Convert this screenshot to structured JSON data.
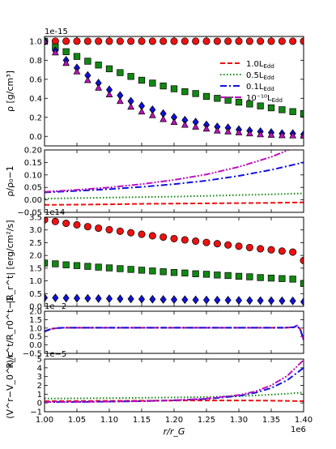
{
  "chart_data": [
    {
      "type": "scatter",
      "panel": "density",
      "ylabel": "ρ [g/cm³]",
      "offset_label": "1e-15",
      "xlim": [
        1.0,
        1400000.0
      ],
      "ylim": [
        -0.1,
        1.05
      ],
      "yticks": [
        "0.0",
        "0.2",
        "0.4",
        "0.6",
        "0.8",
        "1.0"
      ],
      "grid": false,
      "legend_position": "top-right",
      "legend": [
        {
          "label_main": "1.0L",
          "label_sub": "Edd",
          "color": "#ee1111",
          "style": "dashed"
        },
        {
          "label_main": "0.5L",
          "label_sub": "Edd",
          "color": "#118811",
          "style": "dotted"
        },
        {
          "label_main": "0.1L",
          "label_sub": "Edd",
          "color": "#1111dd",
          "style": "dashdot"
        },
        {
          "label_main": "10⁻¹⁰L",
          "label_sub": "Edd",
          "color": "#bb11bb",
          "style": "dashdotdot"
        }
      ],
      "x": [
        1.0,
        1.0167,
        1.0333,
        1.05,
        1.0667,
        1.0833,
        1.1,
        1.1167,
        1.1333,
        1.15,
        1.1667,
        1.1833,
        1.2,
        1.2167,
        1.2333,
        1.25,
        1.2667,
        1.2833,
        1.3,
        1.3167,
        1.3333,
        1.35,
        1.3667,
        1.3833,
        1.4
      ],
      "series": [
        {
          "name": "1.0L_Edd",
          "marker": "circle",
          "color": "#ee1111",
          "values": [
            1.0,
            1.0,
            1.0,
            1.0,
            1.0,
            1.0,
            1.0,
            1.0,
            1.0,
            1.0,
            1.0,
            1.0,
            1.0,
            1.0,
            1.0,
            1.0,
            1.0,
            1.0,
            1.0,
            1.0,
            1.0,
            1.0,
            1.0,
            1.0,
            1.0
          ]
        },
        {
          "name": "0.5L_Edd",
          "marker": "square",
          "color": "#118811",
          "values": [
            1.0,
            0.94,
            0.89,
            0.84,
            0.79,
            0.75,
            0.71,
            0.67,
            0.63,
            0.59,
            0.56,
            0.53,
            0.5,
            0.47,
            0.45,
            0.42,
            0.4,
            0.38,
            0.36,
            0.34,
            0.32,
            0.3,
            0.28,
            0.26,
            0.24
          ]
        },
        {
          "name": "0.1L_Edd",
          "marker": "diamond",
          "color": "#1111dd",
          "values": [
            1.0,
            0.9,
            0.8,
            0.72,
            0.64,
            0.56,
            0.49,
            0.43,
            0.37,
            0.32,
            0.28,
            0.24,
            0.2,
            0.17,
            0.15,
            0.12,
            0.1,
            0.09,
            0.07,
            0.06,
            0.05,
            0.04,
            0.03,
            0.03,
            0.02
          ]
        },
        {
          "name": "1e-10L_Edd",
          "marker": "triangle",
          "color": "#bb11bb",
          "values": [
            1.0,
            0.88,
            0.77,
            0.68,
            0.59,
            0.51,
            0.44,
            0.37,
            0.31,
            0.26,
            0.22,
            0.18,
            0.15,
            0.12,
            0.1,
            0.08,
            0.06,
            0.05,
            0.04,
            0.03,
            0.02,
            0.015,
            0.01,
            0.008,
            0.005
          ]
        }
      ]
    },
    {
      "type": "line",
      "panel": "density-deviation",
      "ylabel": "ρ/ρ₀−1",
      "xlim": [
        1.0,
        1400000.0
      ],
      "ylim": [
        -0.05,
        0.2
      ],
      "yticks": [
        "−0.05",
        "0.00",
        "0.05",
        "0.10",
        "0.15",
        "0.20"
      ],
      "x": [
        1.0,
        1.05,
        1.1,
        1.15,
        1.2,
        1.25,
        1.3,
        1.35,
        1.4
      ],
      "series": [
        {
          "name": "1.0L_Edd",
          "color": "#ee1111",
          "style": "dashed",
          "values": [
            -0.02,
            -0.019,
            -0.018,
            -0.016,
            -0.015,
            -0.014,
            -0.013,
            -0.012,
            -0.01
          ]
        },
        {
          "name": "0.5L_Edd",
          "color": "#118811",
          "style": "dotted",
          "values": [
            0.005,
            0.007,
            0.009,
            0.011,
            0.013,
            0.016,
            0.019,
            0.022,
            0.026
          ]
        },
        {
          "name": "0.1L_Edd",
          "color": "#1111dd",
          "style": "dashdot",
          "values": [
            0.03,
            0.036,
            0.043,
            0.052,
            0.063,
            0.077,
            0.096,
            0.12,
            0.15
          ]
        },
        {
          "name": "1e-10L_Edd",
          "color": "#bb11bb",
          "style": "dashdotdot",
          "values": [
            0.032,
            0.04,
            0.05,
            0.063,
            0.08,
            0.102,
            0.132,
            0.172,
            0.225
          ]
        }
      ]
    },
    {
      "type": "scatter",
      "panel": "radiation-energy-flux",
      "ylabel": "|R_r^t| [erg/cm²/s]",
      "offset_label": "1e14",
      "xlim": [
        1.0,
        1400000.0
      ],
      "ylim": [
        0,
        3.5
      ],
      "yticks": [
        "0.0",
        "0.5",
        "1.0",
        "1.5",
        "2.0",
        "2.5",
        "3.0",
        "3.5"
      ],
      "x": [
        1.0,
        1.0167,
        1.0333,
        1.05,
        1.0667,
        1.0833,
        1.1,
        1.1167,
        1.1333,
        1.15,
        1.1667,
        1.1833,
        1.2,
        1.2167,
        1.2333,
        1.25,
        1.2667,
        1.2833,
        1.3,
        1.3167,
        1.3333,
        1.35,
        1.3667,
        1.3833,
        1.4
      ],
      "series": [
        {
          "name": "1.0L_Edd",
          "marker": "circle",
          "color": "#ee1111",
          "values": [
            3.4,
            3.33,
            3.26,
            3.2,
            3.13,
            3.07,
            3.01,
            2.95,
            2.89,
            2.83,
            2.77,
            2.72,
            2.66,
            2.61,
            2.56,
            2.51,
            2.46,
            2.41,
            2.36,
            2.31,
            2.26,
            2.22,
            2.17,
            2.13,
            1.8
          ]
        },
        {
          "name": "0.5L_Edd",
          "marker": "square",
          "color": "#118811",
          "values": [
            1.7,
            1.67,
            1.63,
            1.6,
            1.57,
            1.54,
            1.51,
            1.48,
            1.45,
            1.42,
            1.39,
            1.36,
            1.33,
            1.31,
            1.28,
            1.26,
            1.23,
            1.21,
            1.18,
            1.16,
            1.13,
            1.11,
            1.09,
            1.07,
            0.9
          ]
        },
        {
          "name": "0.1L_Edd",
          "marker": "diamond",
          "color": "#1111dd",
          "values": [
            0.34,
            0.333,
            0.327,
            0.32,
            0.314,
            0.308,
            0.302,
            0.296,
            0.29,
            0.284,
            0.278,
            0.272,
            0.267,
            0.262,
            0.256,
            0.251,
            0.246,
            0.241,
            0.236,
            0.232,
            0.227,
            0.222,
            0.218,
            0.214,
            0.18
          ]
        }
      ]
    },
    {
      "type": "line",
      "panel": "flux-deviation",
      "ylabel": "R_r^t/R_r0^t−1",
      "offset_label": "1e−2",
      "xlim": [
        1.0,
        1400000.0
      ],
      "ylim": [
        -0.5,
        2.0
      ],
      "yticks": [
        "−0.5",
        "0.0",
        "0.5",
        "1.0",
        "1.5",
        "2.0"
      ],
      "x": [
        1.0,
        1.01,
        1.02,
        1.03,
        1.05,
        1.1,
        1.2,
        1.3,
        1.37,
        1.385,
        1.39,
        1.395,
        1.4
      ],
      "series": [
        {
          "name": "1.0L_Edd",
          "color": "#ee1111",
          "style": "dashed",
          "values": [
            0.8,
            0.95,
            1.0,
            1.02,
            1.02,
            1.02,
            1.02,
            1.02,
            1.02,
            1.05,
            1.15,
            0.9,
            0.3
          ]
        },
        {
          "name": "1e-10L_Edd",
          "color": "#bb11bb",
          "style": "dashdotdot",
          "values": [
            0.8,
            0.95,
            1.0,
            1.02,
            1.02,
            1.02,
            1.02,
            1.02,
            1.02,
            1.05,
            1.15,
            0.9,
            0.3
          ]
        },
        {
          "name": "0.1L_Edd",
          "color": "#1111dd",
          "style": "dashdot",
          "values": [
            0.8,
            0.95,
            1.0,
            1.02,
            1.02,
            1.02,
            1.02,
            1.02,
            1.02,
            1.05,
            1.15,
            0.9,
            0.3
          ]
        }
      ]
    },
    {
      "type": "line",
      "panel": "velocity-deviation",
      "ylabel": "(V^r−V_0^r)/c",
      "offset_label": "1e−5",
      "xlabel": "r/r_G",
      "x_offset_label": "1e6",
      "xlim": [
        1.0,
        1400000.0
      ],
      "ylim": [
        -1,
        5
      ],
      "yticks": [
        "−1",
        "0",
        "1",
        "2",
        "3",
        "4",
        "5"
      ],
      "xticks": [
        "1.00",
        "1.05",
        "1.10",
        "1.15",
        "1.20",
        "1.25",
        "1.30",
        "1.35",
        "1.40"
      ],
      "x": [
        1.0,
        1.05,
        1.1,
        1.15,
        1.2,
        1.25,
        1.3,
        1.325,
        1.35,
        1.375,
        1.4
      ],
      "series": [
        {
          "name": "1.0L_Edd",
          "color": "#ee1111",
          "style": "dashed",
          "values": [
            0.2,
            0.22,
            0.24,
            0.26,
            0.27,
            0.28,
            0.28,
            0.27,
            0.26,
            0.24,
            0.2
          ]
        },
        {
          "name": "0.5L_Edd",
          "color": "#118811",
          "style": "dotted",
          "values": [
            0.5,
            0.52,
            0.55,
            0.58,
            0.62,
            0.68,
            0.77,
            0.85,
            0.95,
            1.05,
            1.2
          ]
        },
        {
          "name": "0.1L_Edd",
          "color": "#1111dd",
          "style": "dashdot",
          "values": [
            0.1,
            0.12,
            0.15,
            0.2,
            0.3,
            0.45,
            0.8,
            1.15,
            1.7,
            2.6,
            4.0
          ]
        },
        {
          "name": "1e-10L_Edd",
          "color": "#bb11bb",
          "style": "dashdotdot",
          "values": [
            0.1,
            0.12,
            0.15,
            0.2,
            0.3,
            0.5,
            0.9,
            1.3,
            2.0,
            3.1,
            4.9
          ]
        }
      ]
    }
  ]
}
